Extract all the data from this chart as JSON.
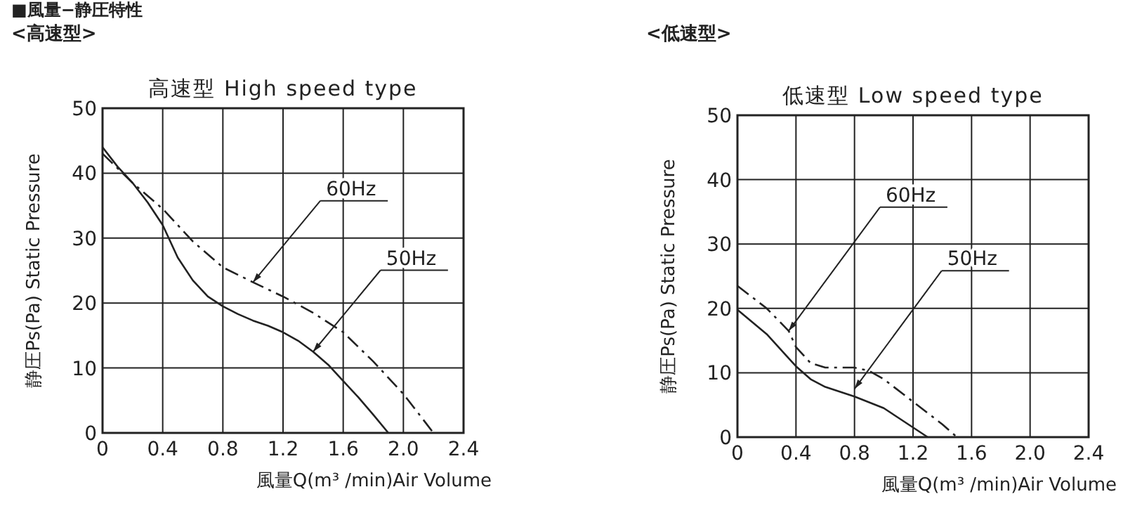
{
  "chart_data": [
    {
      "type": "line",
      "title": "高速型 High speed type",
      "subtitle": "<高速型>",
      "xlabel": "風量Q(m³ /min)Air Volume",
      "ylabel": "静圧Ps(Pa) Static Pressure",
      "annotations": [
        "■風量−静圧特性",
        {
          "text": "60Hz",
          "x": 1.0,
          "y": 23.2
        },
        {
          "text": "50Hz",
          "x": 1.4,
          "y": 12.5
        }
      ],
      "xlim": [
        0,
        2.4
      ],
      "xticks": [
        0,
        0.4,
        0.8,
        1.2,
        1.6,
        {
          "value": 2,
          "label": "2.0"
        },
        2.4
      ],
      "ylim": [
        0,
        50
      ],
      "yticks": [
        0,
        10,
        20,
        30,
        40,
        50
      ],
      "grid": true,
      "series": [
        {
          "color": "#222222",
          "line_style": "dashed",
          "x": [
            0,
            0.2,
            0.4,
            0.6,
            0.8,
            1.0,
            1.2,
            1.4,
            1.6,
            1.8,
            2.0,
            2.1,
            2.2
          ],
          "values": [
            43,
            38.5,
            34.5,
            29.5,
            25.5,
            23.2,
            21,
            18.5,
            15.5,
            11,
            6,
            3,
            0
          ]
        },
        {
          "color": "#222222",
          "line_style": "solid",
          "x": [
            0,
            0.1,
            0.2,
            0.3,
            0.4,
            0.5,
            0.6,
            0.7,
            0.8,
            0.9,
            1.0,
            1.1,
            1.2,
            1.3,
            1.4,
            1.5,
            1.6,
            1.7,
            1.8,
            1.9
          ],
          "values": [
            44,
            41,
            38.5,
            35.5,
            32,
            27,
            23.5,
            21,
            19.5,
            18.3,
            17.3,
            16.5,
            15.5,
            14.2,
            12.5,
            10.5,
            8,
            5.5,
            2.8,
            0
          ]
        }
      ]
    },
    {
      "type": "line",
      "title": "低速型 Low speed type",
      "subtitle": "<低速型>",
      "xlabel": "風量Q(m³ /min)Air Volume",
      "ylabel": "静圧Ps(Pa) Static Pressure",
      "annotations": [
        {
          "text": "60Hz",
          "x": 0.35,
          "y": 16.5
        },
        {
          "text": "50Hz",
          "x": 0.8,
          "y": 7.5
        }
      ],
      "xlim": [
        0,
        2.4
      ],
      "xticks": [
        0,
        0.4,
        0.8,
        1.2,
        1.6,
        {
          "value": 2,
          "label": "2.0"
        },
        2.4
      ],
      "ylim": [
        0,
        50
      ],
      "yticks": [
        0,
        10,
        20,
        30,
        40,
        50
      ],
      "grid": true,
      "series": [
        {
          "color": "#222222",
          "line_style": "dashed",
          "x": [
            0,
            0.2,
            0.35,
            0.4,
            0.5,
            0.6,
            0.8,
            0.9,
            1.0,
            1.2,
            1.4,
            1.5
          ],
          "values": [
            23.5,
            20,
            16.5,
            14,
            11.5,
            10.8,
            10.8,
            10.3,
            9,
            5.5,
            2,
            0
          ]
        },
        {
          "color": "#222222",
          "line_style": "solid",
          "x": [
            0,
            0.2,
            0.4,
            0.5,
            0.6,
            0.8,
            1.0,
            1.1,
            1.2,
            1.3
          ],
          "values": [
            19.8,
            16,
            11,
            9,
            7.8,
            6.3,
            4.5,
            3,
            1.5,
            0
          ]
        }
      ]
    }
  ]
}
